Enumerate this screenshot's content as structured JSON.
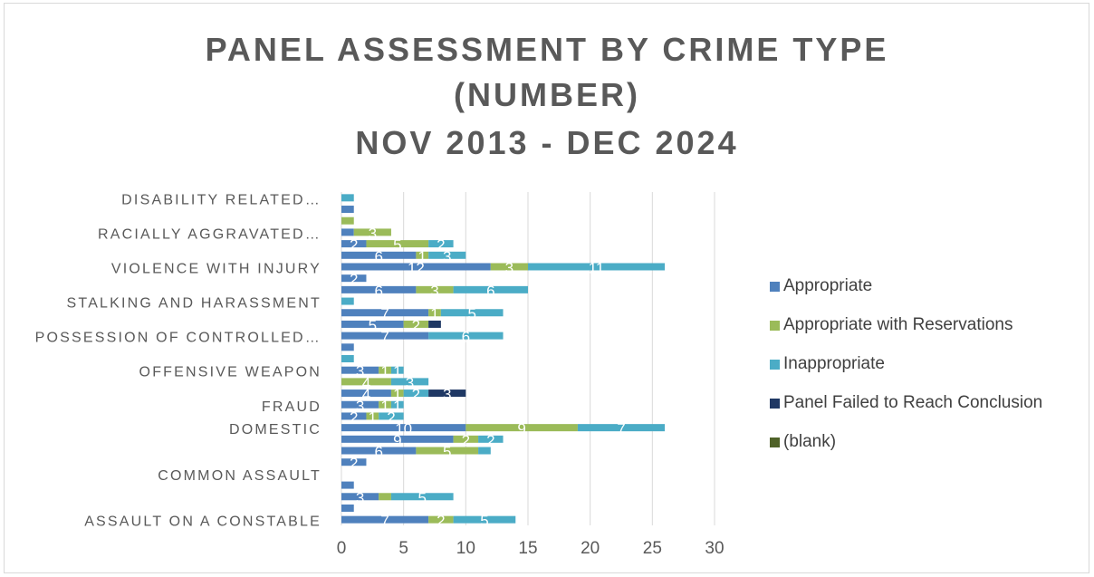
{
  "colors": {
    "Appropriate": "#4f81bd",
    "Appropriate with Reservations": "#9bbb59",
    "Inappropriate": "#4bacc6",
    "Panel Failed to Reach Conclusion": "#1f3864",
    "(blank)": "#4f6228",
    "gridline": "#d9d9d9",
    "text": "#595959",
    "data_label": "#ffffff"
  },
  "chart_data": {
    "type": "bar",
    "orientation": "horizontal",
    "stacked": true,
    "title": [
      "PANEL ASSESSMENT BY CRIME TYPE",
      "(NUMBER)",
      "NOV 2013 - DEC 2024"
    ],
    "xlabel": "",
    "ylabel": "",
    "xlim": [
      0,
      30
    ],
    "xticks": [
      0,
      5,
      10,
      15,
      20,
      25,
      30
    ],
    "grid": "vertical",
    "legend_position": "right",
    "series_names": [
      "Appropriate",
      "Appropriate with Reservations",
      "Inappropriate",
      "Panel Failed to Reach Conclusion",
      "(blank)"
    ],
    "rows": [
      {
        "label": "ASSAULT ON A CONSTABLE",
        "segments": [
          [
            7,
            "7"
          ],
          [
            2,
            "2"
          ],
          [
            5,
            "5"
          ],
          [
            0,
            ""
          ],
          [
            0,
            ""
          ]
        ]
      },
      {
        "label": "",
        "segments": [
          [
            1,
            ""
          ],
          [
            0,
            ""
          ],
          [
            0,
            ""
          ],
          [
            0,
            ""
          ],
          [
            0,
            ""
          ]
        ]
      },
      {
        "label": "",
        "segments": [
          [
            3,
            "3"
          ],
          [
            1,
            ""
          ],
          [
            5,
            "5"
          ],
          [
            0,
            ""
          ],
          [
            0,
            ""
          ]
        ]
      },
      {
        "label": "",
        "segments": [
          [
            1,
            ""
          ],
          [
            0,
            ""
          ],
          [
            0,
            ""
          ],
          [
            0,
            ""
          ],
          [
            0,
            ""
          ]
        ]
      },
      {
        "label": "COMMON ASSAULT",
        "segments": [
          [
            0,
            ""
          ],
          [
            0,
            ""
          ],
          [
            0,
            ""
          ],
          [
            0,
            ""
          ],
          [
            0,
            ""
          ]
        ]
      },
      {
        "label": "",
        "segments": [
          [
            2,
            "2"
          ],
          [
            0,
            ""
          ],
          [
            0,
            ""
          ],
          [
            0,
            ""
          ],
          [
            0,
            ""
          ]
        ]
      },
      {
        "label": "",
        "segments": [
          [
            6,
            "6"
          ],
          [
            5,
            "5"
          ],
          [
            1,
            ""
          ],
          [
            0,
            ""
          ],
          [
            0,
            ""
          ]
        ]
      },
      {
        "label": "",
        "segments": [
          [
            9,
            "9"
          ],
          [
            2,
            "2"
          ],
          [
            2,
            "2"
          ],
          [
            0,
            ""
          ],
          [
            0,
            ""
          ]
        ]
      },
      {
        "label": "DOMESTIC",
        "segments": [
          [
            10,
            "10"
          ],
          [
            9,
            "9"
          ],
          [
            7,
            "7"
          ],
          [
            0,
            ""
          ],
          [
            0,
            ""
          ]
        ]
      },
      {
        "label": "",
        "segments": [
          [
            2,
            "2"
          ],
          [
            1,
            "1"
          ],
          [
            2,
            "2"
          ],
          [
            0,
            ""
          ],
          [
            0,
            ""
          ]
        ]
      },
      {
        "label": "FRAUD",
        "segments": [
          [
            3,
            "3"
          ],
          [
            1,
            "1"
          ],
          [
            1,
            "1"
          ],
          [
            0,
            ""
          ],
          [
            0,
            ""
          ]
        ]
      },
      {
        "label": "",
        "segments": [
          [
            4,
            "4"
          ],
          [
            1,
            "1"
          ],
          [
            2,
            "2"
          ],
          [
            3,
            "3"
          ],
          [
            0,
            ""
          ]
        ]
      },
      {
        "label": "",
        "segments": [
          [
            0,
            ""
          ],
          [
            4,
            "4"
          ],
          [
            3,
            "3"
          ],
          [
            0,
            ""
          ],
          [
            0,
            ""
          ]
        ]
      },
      {
        "label": "OFFENSIVE WEAPON",
        "segments": [
          [
            3,
            "3"
          ],
          [
            1,
            "1"
          ],
          [
            1,
            "1"
          ],
          [
            0,
            ""
          ],
          [
            0,
            ""
          ]
        ]
      },
      {
        "label": "",
        "segments": [
          [
            0,
            ""
          ],
          [
            0,
            ""
          ],
          [
            1,
            ""
          ],
          [
            0,
            ""
          ],
          [
            0,
            ""
          ]
        ]
      },
      {
        "label": "",
        "segments": [
          [
            1,
            ""
          ],
          [
            0,
            ""
          ],
          [
            0,
            ""
          ],
          [
            0,
            ""
          ],
          [
            0,
            ""
          ]
        ]
      },
      {
        "label": "POSSESSION OF CONTROLLED…",
        "segments": [
          [
            7,
            "7"
          ],
          [
            0,
            ""
          ],
          [
            6,
            "6"
          ],
          [
            0,
            ""
          ],
          [
            0,
            ""
          ]
        ]
      },
      {
        "label": "",
        "segments": [
          [
            5,
            "5"
          ],
          [
            2,
            "2"
          ],
          [
            0,
            ""
          ],
          [
            1,
            ""
          ],
          [
            0,
            ""
          ]
        ]
      },
      {
        "label": "",
        "segments": [
          [
            7,
            "7"
          ],
          [
            1,
            "1"
          ],
          [
            5,
            "5"
          ],
          [
            0,
            ""
          ],
          [
            0,
            ""
          ]
        ]
      },
      {
        "label": "STALKING AND HARASSMENT",
        "segments": [
          [
            0,
            ""
          ],
          [
            0,
            ""
          ],
          [
            1,
            ""
          ],
          [
            0,
            ""
          ],
          [
            0,
            ""
          ]
        ]
      },
      {
        "label": "",
        "segments": [
          [
            6,
            "6"
          ],
          [
            3,
            "3"
          ],
          [
            6,
            "6"
          ],
          [
            0,
            ""
          ],
          [
            0,
            ""
          ]
        ]
      },
      {
        "label": "",
        "segments": [
          [
            2,
            "2"
          ],
          [
            0,
            ""
          ],
          [
            0,
            ""
          ],
          [
            0,
            ""
          ],
          [
            0,
            ""
          ]
        ]
      },
      {
        "label": "VIOLENCE WITH INJURY",
        "segments": [
          [
            12,
            "12"
          ],
          [
            3,
            "3"
          ],
          [
            11,
            "11"
          ],
          [
            0,
            ""
          ],
          [
            0,
            ""
          ]
        ]
      },
      {
        "label": "",
        "segments": [
          [
            6,
            "6"
          ],
          [
            1,
            "1"
          ],
          [
            3,
            "3"
          ],
          [
            0,
            ""
          ],
          [
            0,
            ""
          ]
        ]
      },
      {
        "label": "",
        "segments": [
          [
            2,
            "2"
          ],
          [
            5,
            "5"
          ],
          [
            2,
            "2"
          ],
          [
            0,
            ""
          ],
          [
            0,
            ""
          ]
        ]
      },
      {
        "label": "RACIALLY AGGRAVATED…",
        "segments": [
          [
            1,
            ""
          ],
          [
            3,
            "3"
          ],
          [
            0,
            ""
          ],
          [
            0,
            ""
          ],
          [
            0,
            ""
          ]
        ]
      },
      {
        "label": "",
        "segments": [
          [
            0,
            ""
          ],
          [
            1,
            ""
          ],
          [
            0,
            ""
          ],
          [
            0,
            ""
          ],
          [
            0,
            ""
          ]
        ]
      },
      {
        "label": "",
        "segments": [
          [
            1,
            ""
          ],
          [
            0,
            ""
          ],
          [
            0,
            ""
          ],
          [
            0,
            ""
          ],
          [
            0,
            ""
          ]
        ]
      },
      {
        "label": "DISABILITY RELATED…",
        "segments": [
          [
            0,
            ""
          ],
          [
            0,
            ""
          ],
          [
            1,
            ""
          ],
          [
            0,
            ""
          ],
          [
            0,
            ""
          ]
        ]
      }
    ]
  }
}
